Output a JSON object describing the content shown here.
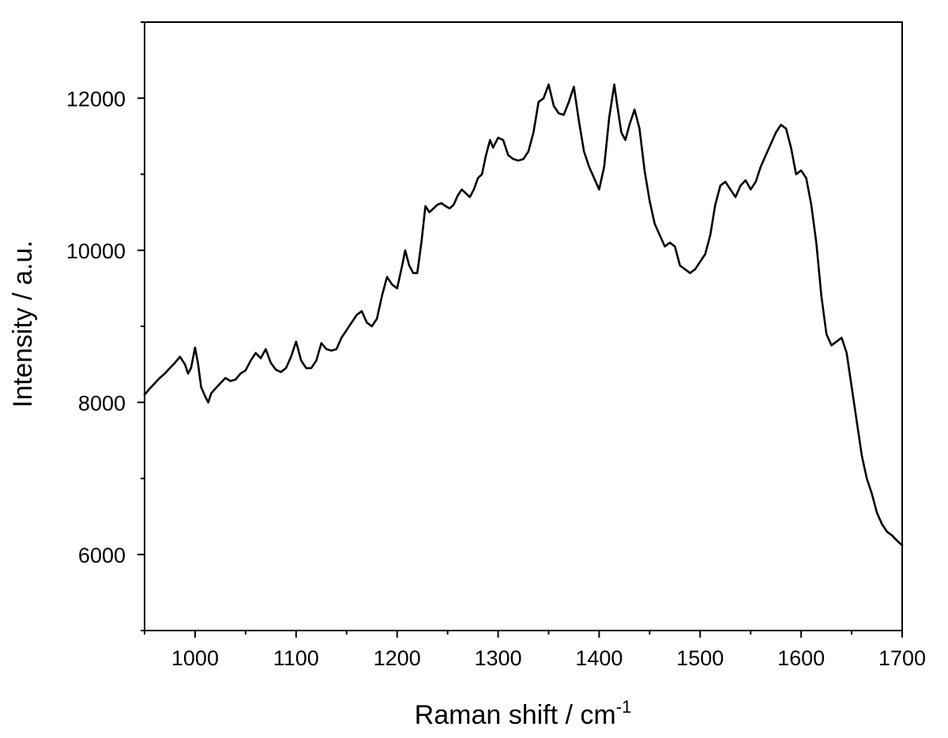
{
  "chart_data": {
    "type": "line",
    "title": "",
    "xlabel": "Raman shift / cm",
    "xlabel_superscript": "-1",
    "ylabel": "Intensity / a.u.",
    "xlim": [
      950,
      1700
    ],
    "ylim": [
      5000,
      13000
    ],
    "x_ticks": [
      1000,
      1100,
      1200,
      1300,
      1400,
      1500,
      1600,
      1700
    ],
    "y_ticks": [
      6000,
      8000,
      10000,
      12000
    ],
    "y_minor_ticks": [
      5000,
      7000,
      9000,
      11000,
      13000
    ],
    "grid": false,
    "legend": "none",
    "line_color": "#000000",
    "series": [
      {
        "x": [
          950,
          955,
          960,
          965,
          970,
          975,
          980,
          985,
          990,
          993,
          996,
          1000,
          1003,
          1006,
          1010,
          1013,
          1016,
          1020,
          1025,
          1030,
          1035,
          1040,
          1045,
          1050,
          1055,
          1060,
          1065,
          1070,
          1075,
          1080,
          1085,
          1090,
          1095,
          1100,
          1105,
          1110,
          1115,
          1120,
          1125,
          1130,
          1135,
          1140,
          1145,
          1150,
          1155,
          1160,
          1165,
          1170,
          1175,
          1180,
          1185,
          1190,
          1195,
          1200,
          1205,
          1208,
          1212,
          1216,
          1220,
          1224,
          1228,
          1232,
          1236,
          1240,
          1244,
          1248,
          1252,
          1256,
          1260,
          1264,
          1268,
          1272,
          1276,
          1280,
          1284,
          1288,
          1292,
          1295,
          1300,
          1305,
          1310,
          1315,
          1320,
          1325,
          1330,
          1335,
          1340,
          1345,
          1350,
          1355,
          1360,
          1365,
          1370,
          1375,
          1380,
          1385,
          1390,
          1395,
          1400,
          1405,
          1410,
          1415,
          1418,
          1422,
          1426,
          1430,
          1435,
          1440,
          1445,
          1450,
          1455,
          1460,
          1465,
          1470,
          1475,
          1480,
          1485,
          1490,
          1495,
          1500,
          1505,
          1510,
          1515,
          1520,
          1525,
          1530,
          1535,
          1540,
          1545,
          1550,
          1555,
          1560,
          1565,
          1570,
          1575,
          1580,
          1585,
          1590,
          1595,
          1600,
          1605,
          1610,
          1615,
          1620,
          1625,
          1630,
          1635,
          1640,
          1645,
          1650,
          1655,
          1660,
          1665,
          1670,
          1675,
          1680,
          1685,
          1690,
          1695,
          1700
        ],
        "y": [
          8100,
          8180,
          8250,
          8320,
          8380,
          8450,
          8520,
          8600,
          8500,
          8380,
          8450,
          8720,
          8500,
          8200,
          8080,
          8000,
          8120,
          8180,
          8250,
          8320,
          8280,
          8300,
          8380,
          8420,
          8550,
          8650,
          8580,
          8700,
          8520,
          8430,
          8400,
          8450,
          8600,
          8800,
          8550,
          8450,
          8450,
          8550,
          8780,
          8700,
          8680,
          8700,
          8850,
          8950,
          9050,
          9150,
          9200,
          9050,
          9000,
          9100,
          9400,
          9650,
          9550,
          9500,
          9800,
          10000,
          9800,
          9700,
          9700,
          10100,
          10580,
          10500,
          10550,
          10600,
          10620,
          10580,
          10550,
          10600,
          10720,
          10800,
          10750,
          10700,
          10800,
          10950,
          11000,
          11250,
          11450,
          11350,
          11480,
          11450,
          11250,
          11200,
          11180,
          11200,
          11300,
          11550,
          11950,
          12000,
          12180,
          11900,
          11800,
          11780,
          11950,
          12150,
          11700,
          11300,
          11100,
          10950,
          10800,
          11100,
          11750,
          12180,
          11900,
          11550,
          11450,
          11650,
          11850,
          11600,
          11050,
          10650,
          10350,
          10200,
          10050,
          10100,
          10050,
          9800,
          9750,
          9700,
          9750,
          9850,
          9950,
          10200,
          10600,
          10850,
          10900,
          10800,
          10700,
          10850,
          10920,
          10800,
          10900,
          11100,
          11250,
          11400,
          11550,
          11650,
          11600,
          11350,
          11000,
          11050,
          10950,
          10600,
          10100,
          9400,
          8900,
          8750,
          8800,
          8850,
          8650,
          8200,
          7750,
          7300,
          7000,
          6800,
          6550,
          6400,
          6300,
          6250,
          6180,
          6120
        ]
      }
    ]
  }
}
